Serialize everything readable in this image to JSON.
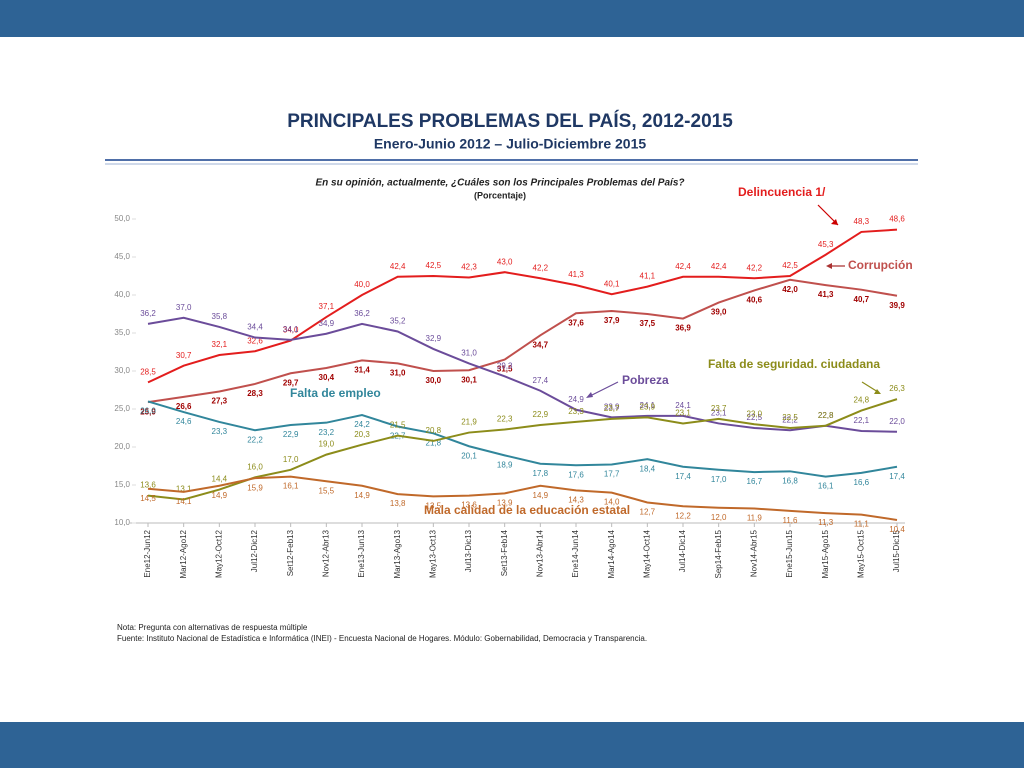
{
  "chart_data": {
    "type": "line",
    "title": "PRINCIPALES PROBLEMAS DEL PAÍS, 2012-2015",
    "subtitle": "Enero-Junio 2012  –  Julio-Diciembre 2015",
    "question": "En su opinión, actualmente, ¿Cuáles son los Principales Problemas del País?",
    "unit_note": "(Porcentaje)",
    "notes": [
      "Nota: Pregunta con alternativas de respuesta múltiple",
      "Fuente: Instituto Nacional de Estadística e Informática (INEI) - Encuesta Nacional de Hogares. Módulo: Gobernabilidad, Democracia y Transparencia."
    ],
    "categories": [
      "Ene12-Jun12",
      "Mar12-Ago12",
      "May12-Oct12",
      "Jul12-Dic12",
      "Set12-Feb13",
      "Nov12-Abr13",
      "Ene13-Jun13",
      "Mar13-Ago13",
      "May13-Oct13",
      "Jul13-Dic13",
      "Set13-Feb14",
      "Nov13-Abr14",
      "Ene14-Jun14",
      "Mar14-Ago14",
      "May14-Oct14",
      "Jul14-Dic14",
      "Sep14-Feb15",
      "Nov14-Abr15",
      "Ene15-Jun15",
      "Mar15-Ago15",
      "May15-Oct15",
      "Jul15-Dic15"
    ],
    "ylim": [
      10,
      50
    ],
    "yticks": [
      {
        "value": 10,
        "label": "10,0"
      },
      {
        "value": 15,
        "label": "15,0"
      },
      {
        "value": 20,
        "label": "20,0"
      },
      {
        "value": 25,
        "label": "25,0"
      },
      {
        "value": 30,
        "label": "30,0"
      },
      {
        "value": 35,
        "label": "35,0"
      },
      {
        "value": 40,
        "label": "40,0"
      },
      {
        "value": 45,
        "label": "45,0"
      },
      {
        "value": 50,
        "label": "50,0"
      }
    ],
    "series": [
      {
        "name": "Delincuencia 1/",
        "color": "#e31d1d",
        "values": [
          28.5,
          30.7,
          32.1,
          32.6,
          34.0,
          37.1,
          40.0,
          42.4,
          42.5,
          42.3,
          43.0,
          42.2,
          41.3,
          40.1,
          41.1,
          42.4,
          42.4,
          42.2,
          42.5,
          45.3,
          48.3,
          48.6
        ],
        "value_labels": [
          "28,5",
          "30,7",
          "32,1",
          "32,6",
          "34,0",
          "37,1",
          "40,0",
          "42,4",
          "42,5",
          "42,3",
          "43,0",
          "42,2",
          "41,3",
          "40,1",
          "41,1",
          "42,4",
          "42,4",
          "42,2",
          "42,5",
          "45,3",
          "48,3",
          "48,6"
        ]
      },
      {
        "name": "Corrupción",
        "color": "#c0504d",
        "values": [
          25.9,
          26.6,
          27.3,
          28.3,
          29.7,
          30.4,
          31.4,
          31.0,
          30.0,
          30.1,
          31.5,
          34.7,
          37.6,
          37.9,
          37.5,
          36.9,
          39.0,
          40.6,
          42.0,
          41.3,
          40.7,
          39.9
        ],
        "value_labels": [
          "25,9",
          "26,6",
          "27,3",
          "28,3",
          "29,7",
          "30,4",
          "31,4",
          "31,0",
          "30,0",
          "30,1",
          "31,5",
          "34,7",
          "37,6",
          "37,9",
          "37,5",
          "36,9",
          "39,0",
          "40,6",
          "42,0",
          "41,3",
          "40,7",
          "39,9"
        ]
      },
      {
        "name": "Pobreza",
        "color": "#6b4c9a",
        "values": [
          36.2,
          37.0,
          35.8,
          34.4,
          34.1,
          34.9,
          36.2,
          35.2,
          32.9,
          31.0,
          29.3,
          27.4,
          24.9,
          23.9,
          24.1,
          24.1,
          23.1,
          22.5,
          22.2,
          22.8,
          22.1,
          22.0
        ],
        "value_labels": [
          "36,2",
          "37,0",
          "35,8",
          "34,4",
          "34,1",
          "34,9",
          "36,2",
          "35,2",
          "32,9",
          "31,0",
          "29,3",
          "27,4",
          "24,9",
          "23,9",
          "24,1",
          "24,1",
          "23,1",
          "22,5",
          "22,2",
          "22,8",
          "22,1",
          "22,0"
        ]
      },
      {
        "name": "Falta de empleo",
        "color": "#31869b",
        "values": [
          26.0,
          24.6,
          23.3,
          22.2,
          22.9,
          23.2,
          24.2,
          22.7,
          21.8,
          20.1,
          18.9,
          17.8,
          17.6,
          17.7,
          18.4,
          17.4,
          17.0,
          16.7,
          16.8,
          16.1,
          16.6,
          17.4
        ],
        "value_labels": [
          "26,0",
          "24,6",
          "23,3",
          "22,2",
          "22,9",
          "23,2",
          "24,2",
          "22,7",
          "21,8",
          "20,1",
          "18,9",
          "17,8",
          "17,6",
          "17,7",
          "18,4",
          "17,4",
          "17,0",
          "16,7",
          "16,8",
          "16,1",
          "16,6",
          "17,4"
        ]
      },
      {
        "name": "Falta de seguridad. ciudadana",
        "color": "#8c8c1a",
        "values": [
          13.6,
          13.1,
          14.4,
          16.0,
          17.0,
          19.0,
          20.3,
          21.5,
          20.8,
          21.9,
          22.3,
          22.9,
          23.3,
          23.7,
          23.9,
          23.1,
          23.7,
          23.0,
          22.5,
          22.8,
          24.8,
          26.3
        ],
        "value_labels": [
          "13,6",
          "13,1",
          "14,4",
          "16,0",
          "17,0",
          "19,0",
          "20,3",
          "21,5",
          "20,8",
          "21,9",
          "22,3",
          "22,9",
          "23,3",
          "23,7",
          "23,9",
          "23,1",
          "23,7",
          "23,0",
          "22,5",
          "22,8",
          "24,8",
          "26,3"
        ]
      },
      {
        "name": "Mala calidad de la educación estatal",
        "color": "#c0692a",
        "values": [
          14.5,
          14.1,
          14.9,
          15.9,
          16.1,
          15.5,
          14.9,
          13.8,
          13.5,
          13.6,
          13.9,
          14.9,
          14.3,
          14.0,
          12.7,
          12.2,
          12.0,
          11.9,
          11.6,
          11.3,
          11.1,
          10.4
        ],
        "value_labels": [
          "14,5",
          "14,1",
          "14,9",
          "15,9",
          "16,1",
          "15,5",
          "14,9",
          "13,8",
          "13,5",
          "13,6",
          "13,9",
          "14,9",
          "14,3",
          "14,0",
          "12,7",
          "12,2",
          "12,0",
          "11,9",
          "11,6",
          "11,3",
          "11,1",
          "10,4"
        ]
      }
    ]
  }
}
